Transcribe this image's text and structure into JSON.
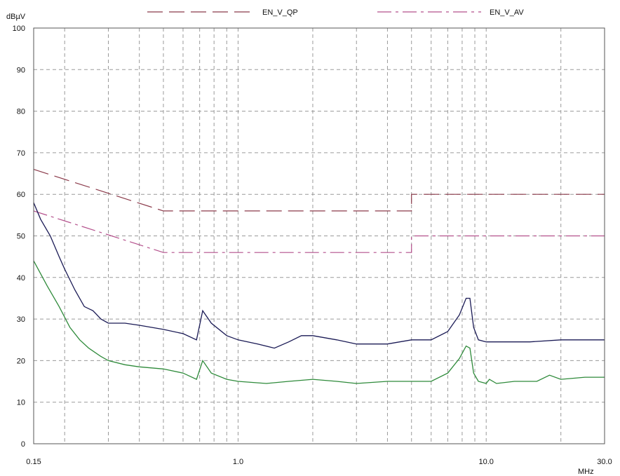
{
  "chart_data": {
    "type": "line",
    "title": "",
    "ylabel": "dBµV",
    "xlabel": "MHz",
    "xscale": "log",
    "xlim": [
      0.15,
      30.0
    ],
    "ylim": [
      0,
      100
    ],
    "grid": true,
    "legend_position": "top",
    "x_ticks": [
      {
        "value": 0.15,
        "label": "0.15"
      },
      {
        "value": 1.0,
        "label": "1.0"
      },
      {
        "value": 10.0,
        "label": "10.0"
      },
      {
        "value": 30.0,
        "label": "30.0"
      }
    ],
    "y_ticks": [
      0,
      10,
      20,
      30,
      40,
      50,
      60,
      70,
      80,
      90,
      100
    ],
    "series": [
      {
        "name": "EN_V_QP",
        "style": "dashed",
        "color": "#8b3a4a",
        "in_legend": true,
        "points": [
          [
            0.15,
            66
          ],
          [
            0.5,
            56
          ],
          [
            5.0,
            56
          ],
          [
            5.0,
            60
          ],
          [
            30.0,
            60
          ]
        ]
      },
      {
        "name": "EN_V_AV",
        "style": "dashdot",
        "color": "#b4508c",
        "in_legend": true,
        "points": [
          [
            0.15,
            56
          ],
          [
            0.5,
            46
          ],
          [
            5.0,
            46
          ],
          [
            5.0,
            50
          ],
          [
            30.0,
            50
          ]
        ]
      },
      {
        "name": "",
        "style": "solid",
        "color": "#1a1a55",
        "in_legend": false,
        "points": [
          [
            0.15,
            58
          ],
          [
            0.16,
            54
          ],
          [
            0.175,
            50
          ],
          [
            0.19,
            45
          ],
          [
            0.2,
            42
          ],
          [
            0.22,
            37
          ],
          [
            0.24,
            33
          ],
          [
            0.26,
            32
          ],
          [
            0.28,
            30
          ],
          [
            0.3,
            29
          ],
          [
            0.35,
            29
          ],
          [
            0.4,
            28.5
          ],
          [
            0.5,
            27.5
          ],
          [
            0.6,
            26.5
          ],
          [
            0.68,
            25
          ],
          [
            0.72,
            32
          ],
          [
            0.78,
            29
          ],
          [
            0.9,
            26
          ],
          [
            1.0,
            25
          ],
          [
            1.2,
            24
          ],
          [
            1.4,
            23
          ],
          [
            1.6,
            24.5
          ],
          [
            1.8,
            26
          ],
          [
            2.0,
            26
          ],
          [
            2.5,
            25
          ],
          [
            3.0,
            24
          ],
          [
            4.0,
            24
          ],
          [
            5.0,
            25
          ],
          [
            6.0,
            25
          ],
          [
            7.0,
            27
          ],
          [
            7.8,
            31
          ],
          [
            8.3,
            35
          ],
          [
            8.6,
            35
          ],
          [
            8.9,
            28
          ],
          [
            9.3,
            25
          ],
          [
            10.0,
            24.5
          ],
          [
            15.0,
            24.5
          ],
          [
            20.0,
            25
          ],
          [
            25.0,
            25
          ],
          [
            30.0,
            25
          ]
        ]
      },
      {
        "name": "",
        "style": "solid",
        "color": "#2e8a3a",
        "in_legend": false,
        "points": [
          [
            0.15,
            44
          ],
          [
            0.17,
            38
          ],
          [
            0.19,
            33
          ],
          [
            0.21,
            28
          ],
          [
            0.23,
            25
          ],
          [
            0.25,
            23
          ],
          [
            0.28,
            21
          ],
          [
            0.3,
            20
          ],
          [
            0.35,
            19
          ],
          [
            0.4,
            18.5
          ],
          [
            0.5,
            18
          ],
          [
            0.6,
            17
          ],
          [
            0.68,
            15.5
          ],
          [
            0.72,
            20
          ],
          [
            0.78,
            17
          ],
          [
            0.9,
            15.5
          ],
          [
            1.0,
            15
          ],
          [
            1.3,
            14.5
          ],
          [
            1.6,
            15
          ],
          [
            2.0,
            15.5
          ],
          [
            2.5,
            15
          ],
          [
            3.0,
            14.5
          ],
          [
            4.0,
            15
          ],
          [
            5.0,
            15
          ],
          [
            6.0,
            15
          ],
          [
            7.0,
            17
          ],
          [
            7.8,
            20.5
          ],
          [
            8.3,
            23.5
          ],
          [
            8.6,
            23
          ],
          [
            8.9,
            17
          ],
          [
            9.3,
            15
          ],
          [
            10.0,
            14.5
          ],
          [
            10.3,
            15.5
          ],
          [
            11.0,
            14.5
          ],
          [
            13.0,
            15
          ],
          [
            16.0,
            15
          ],
          [
            18.0,
            16.5
          ],
          [
            20.0,
            15.5
          ],
          [
            25.0,
            16
          ],
          [
            30.0,
            16
          ]
        ]
      }
    ]
  }
}
